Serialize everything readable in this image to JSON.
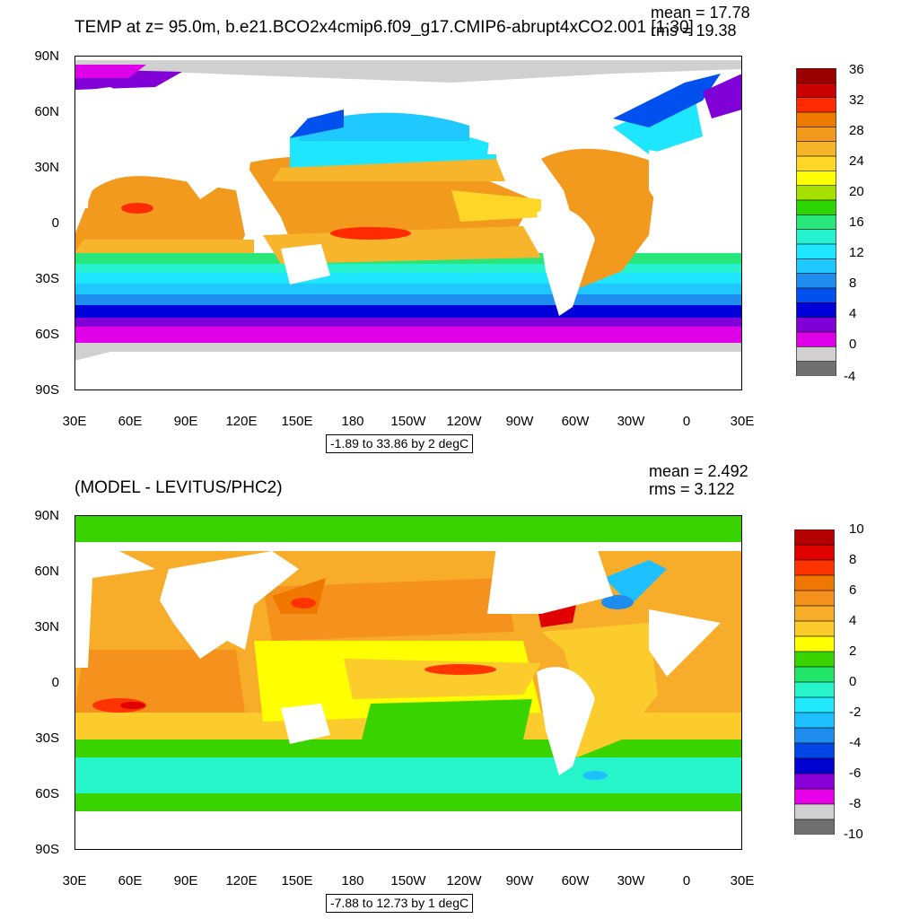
{
  "top": {
    "title": "TEMP at z=  95.0m, b.e21.BCO2x4cmip6.f09_g17.CMIP6-abrupt4xCO2.001 [1:30]",
    "mean": "mean = 17.78",
    "rms": "rms = 19.38",
    "range": "-1.89 to 33.86 by 2 degC",
    "colorbar_labels": [
      "36",
      "32",
      "28",
      "24",
      "20",
      "16",
      "12",
      "8",
      "4",
      "0",
      "-4"
    ],
    "colorbar_colors": [
      "#9a0000",
      "#c80000",
      "#ff2a00",
      "#ee7a00",
      "#f29a1e",
      "#f7b52c",
      "#fdd628",
      "#ffff00",
      "#a5e000",
      "#2cd600",
      "#27e67a",
      "#27f2cf",
      "#1ee6ff",
      "#1fc8ff",
      "#1f8cf0",
      "#0050f0",
      "#0000d8",
      "#8200d8",
      "#e000e8",
      "#d0d0d0",
      "#707070"
    ]
  },
  "bottom": {
    "title": "(MODEL - LEVITUS/PHC2)",
    "mean": "mean = 2.492",
    "rms": "rms = 3.122",
    "range": "-7.88 to 12.73 by 1 degC",
    "colorbar_labels": [
      "10",
      "8",
      "6",
      "4",
      "2",
      "0",
      "-2",
      "-4",
      "-6",
      "-8",
      "-10"
    ],
    "colorbar_colors": [
      "#b40000",
      "#e00000",
      "#ff3300",
      "#f07800",
      "#f5921e",
      "#f8ad2a",
      "#fccb2c",
      "#ffff00",
      "#39d400",
      "#22e66a",
      "#25f5c8",
      "#20e8ff",
      "#1fc0ff",
      "#1f8cf0",
      "#0046e6",
      "#0000d0",
      "#8a00d8",
      "#e800e8",
      "#d0d0d0",
      "#707070"
    ]
  },
  "axes": {
    "lat_labels": [
      "90N",
      "60N",
      "30N",
      "0",
      "30S",
      "60S",
      "90S"
    ],
    "lon_labels": [
      "30E",
      "60E",
      "90E",
      "120E",
      "150E",
      "180",
      "150W",
      "120W",
      "90W",
      "60W",
      "30W",
      "0",
      "30E"
    ]
  }
}
